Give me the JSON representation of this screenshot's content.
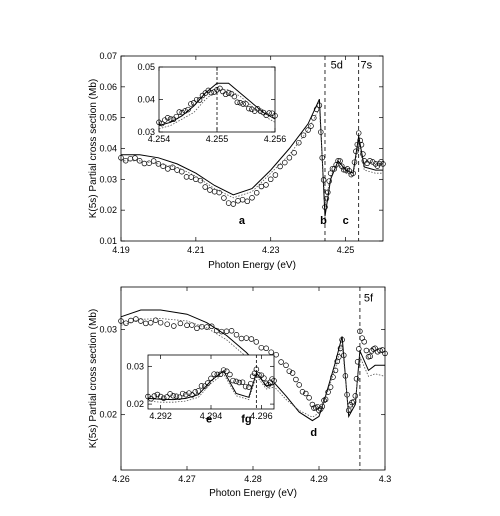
{
  "chart_data": [
    {
      "type": "scatter",
      "panel": "top",
      "xlabel": "Photon Energy (eV)",
      "ylabel": "K(5s) Partial cross section (Mb)",
      "xlim": [
        4.19,
        4.26
      ],
      "ylim": [
        0.01,
        0.07
      ],
      "xticks": [
        4.19,
        4.21,
        4.23,
        4.25
      ],
      "yticks": [
        0.01,
        0.02,
        0.03,
        0.04,
        0.05,
        0.06,
        0.07
      ],
      "xtick_labels": [
        "4.19",
        "4.21",
        "4.23",
        "4.25"
      ],
      "ytick_labels": [
        "0.01",
        "0.02",
        "0.03",
        "0.04",
        "0.05",
        "0.06",
        "0.07"
      ],
      "grid": false,
      "vlines": [
        4.2445,
        4.2535
      ],
      "annotations": [
        {
          "text": "5d",
          "x": 4.246,
          "y": 0.066,
          "bold": false
        },
        {
          "text": "7s",
          "x": 4.254,
          "y": 0.066,
          "bold": false
        },
        {
          "text": "a",
          "x": 4.2215,
          "y": 0.0155,
          "bold": true
        },
        {
          "text": "b",
          "x": 4.2432,
          "y": 0.0155,
          "bold": true
        },
        {
          "text": "c",
          "x": 4.2492,
          "y": 0.0155,
          "bold": true
        }
      ],
      "series": [
        {
          "style": "markers",
          "x": [
            4.19,
            4.195,
            4.2,
            4.205,
            4.21,
            4.215,
            4.22,
            4.225,
            4.23,
            4.235,
            4.24,
            4.243,
            4.2445,
            4.246,
            4.248,
            4.25,
            4.252,
            4.2535,
            4.255,
            4.258,
            4.26
          ],
          "y": [
            0.037,
            0.036,
            0.035,
            0.033,
            0.03,
            0.026,
            0.022,
            0.024,
            0.03,
            0.037,
            0.046,
            0.054,
            0.021,
            0.032,
            0.036,
            0.033,
            0.032,
            0.045,
            0.036,
            0.035,
            0.035
          ]
        },
        {
          "style": "line",
          "x": [
            4.19,
            4.195,
            4.2,
            4.205,
            4.21,
            4.215,
            4.22,
            4.225,
            4.23,
            4.235,
            4.24,
            4.243,
            4.2445,
            4.246,
            4.248,
            4.25,
            4.252,
            4.2535,
            4.255,
            4.258,
            4.26
          ],
          "y": [
            0.038,
            0.038,
            0.037,
            0.035,
            0.032,
            0.028,
            0.025,
            0.027,
            0.033,
            0.04,
            0.048,
            0.056,
            0.018,
            0.03,
            0.036,
            0.033,
            0.032,
            0.044,
            0.034,
            0.033,
            0.033
          ]
        },
        {
          "style": "line",
          "x": [
            4.19,
            4.195,
            4.2,
            4.205,
            4.21,
            4.215,
            4.22,
            4.225,
            4.23,
            4.235,
            4.24,
            4.243,
            4.2445,
            4.246,
            4.248,
            4.25,
            4.252,
            4.2535,
            4.255,
            4.258,
            4.26
          ],
          "y": [
            0.036,
            0.036,
            0.035,
            0.034,
            0.031,
            0.027,
            0.024,
            0.026,
            0.032,
            0.038,
            0.046,
            0.053,
            0.022,
            0.031,
            0.035,
            0.032,
            0.031,
            0.042,
            0.033,
            0.032,
            0.032
          ]
        }
      ],
      "inset": {
        "xlim": [
          4.254,
          4.256
        ],
        "ylim": [
          0.03,
          0.05
        ],
        "xticks": [
          4.254,
          4.255,
          4.256
        ],
        "yticks": [
          0.03,
          0.04,
          0.05
        ],
        "xtick_labels": [
          "4.254",
          "4.255",
          "4.256"
        ],
        "ytick_labels": [
          "0.03",
          "0.04",
          "0.05"
        ],
        "vline": 4.255,
        "series": [
          {
            "style": "markers",
            "x": [
              4.254,
              4.2542,
              4.2544,
              4.2546,
              4.2548,
              4.255,
              4.2552,
              4.2554,
              4.2556,
              4.2558,
              4.256
            ],
            "y": [
              0.033,
              0.034,
              0.036,
              0.039,
              0.042,
              0.043,
              0.042,
              0.039,
              0.037,
              0.036,
              0.035
            ]
          },
          {
            "style": "line",
            "x": [
              4.254,
              4.2542,
              4.2544,
              4.2546,
              4.2548,
              4.255,
              4.2552,
              4.2554,
              4.2556,
              4.2558,
              4.256
            ],
            "y": [
              0.032,
              0.033,
              0.035,
              0.038,
              0.042,
              0.045,
              0.045,
              0.042,
              0.039,
              0.036,
              0.034
            ]
          },
          {
            "style": "line",
            "x": [
              4.254,
              4.2542,
              4.2544,
              4.2546,
              4.2548,
              4.255,
              4.2552,
              4.2554,
              4.2556,
              4.2558,
              4.256
            ],
            "y": [
              0.031,
              0.032,
              0.034,
              0.036,
              0.04,
              0.043,
              0.043,
              0.041,
              0.038,
              0.035,
              0.033
            ]
          }
        ]
      }
    },
    {
      "type": "scatter",
      "panel": "bottom",
      "xlabel": "Photon Energy (eV)",
      "ylabel": "K(5s) Partial cross section (Mb)",
      "xlim": [
        4.26,
        4.3
      ],
      "ylim": [
        0.0135,
        0.035
      ],
      "xticks": [
        4.26,
        4.27,
        4.28,
        4.29,
        4.3
      ],
      "yticks": [
        0.02,
        0.03
      ],
      "xtick_labels": [
        "4.26",
        "4.27",
        "4.28",
        "4.29",
        "4.3"
      ],
      "ytick_labels": [
        "0.02",
        "0.03"
      ],
      "grid": false,
      "vlines": [
        4.2962
      ],
      "annotations": [
        {
          "text": "5f",
          "x": 4.2968,
          "y": 0.0333,
          "bold": false
        },
        {
          "text": "d",
          "x": 4.2887,
          "y": 0.0175,
          "bold": true
        }
      ],
      "series": [
        {
          "style": "markers",
          "x": [
            4.26,
            4.263,
            4.266,
            4.27,
            4.273,
            4.276,
            4.279,
            4.282,
            4.285,
            4.287,
            4.289,
            4.29,
            4.291,
            4.2925,
            4.2935,
            4.2945,
            4.2955,
            4.2962,
            4.2975,
            4.2985,
            4.3
          ],
          "y": [
            0.031,
            0.031,
            0.0308,
            0.0305,
            0.0303,
            0.0298,
            0.029,
            0.0278,
            0.0258,
            0.0235,
            0.0212,
            0.0205,
            0.0218,
            0.0252,
            0.0288,
            0.0205,
            0.0222,
            0.0298,
            0.0268,
            0.0278,
            0.0272
          ]
        },
        {
          "style": "line",
          "x": [
            4.26,
            4.263,
            4.266,
            4.27,
            4.273,
            4.276,
            4.279,
            4.282,
            4.285,
            4.287,
            4.289,
            4.29,
            4.291,
            4.2925,
            4.2935,
            4.2945,
            4.2955,
            4.2962,
            4.2975,
            4.2985,
            4.3
          ],
          "y": [
            0.0315,
            0.0323,
            0.0323,
            0.0318,
            0.0308,
            0.0293,
            0.0273,
            0.0248,
            0.0222,
            0.0203,
            0.0193,
            0.0198,
            0.0222,
            0.0262,
            0.0292,
            0.0198,
            0.0212,
            0.0275,
            0.0252,
            0.0258,
            0.0258
          ]
        },
        {
          "style": "line",
          "x": [
            4.26,
            4.263,
            4.266,
            4.27,
            4.273,
            4.276,
            4.279,
            4.282,
            4.285,
            4.287,
            4.289,
            4.29,
            4.291,
            4.2925,
            4.2935,
            4.2945,
            4.2955,
            4.2962,
            4.2975,
            4.2985,
            4.3
          ],
          "y": [
            0.0305,
            0.0312,
            0.0313,
            0.031,
            0.0302,
            0.0288,
            0.0268,
            0.0243,
            0.0218,
            0.0205,
            0.0197,
            0.0202,
            0.022,
            0.0255,
            0.0283,
            0.0202,
            0.0215,
            0.0268,
            0.0245,
            0.0248,
            0.0245
          ]
        }
      ],
      "inset": {
        "xlim": [
          4.2915,
          4.2965
        ],
        "ylim": [
          0.0187,
          0.033
        ],
        "xticks": [
          4.292,
          4.294,
          4.296
        ],
        "yticks": [
          0.02,
          0.03
        ],
        "xtick_labels": [
          "4.292",
          "4.294",
          "4.296"
        ],
        "ytick_labels": [
          "0.02",
          "0.03"
        ],
        "vline": 4.2958,
        "annotations": [
          {
            "text": "e",
            "x": 4.2938,
            "y": 0.0199
          },
          {
            "text": "fg",
            "x": 4.2952,
            "y": 0.0199
          }
        ],
        "series": [
          {
            "style": "markers",
            "x": [
              4.2915,
              4.292,
              4.2925,
              4.293,
              4.2935,
              4.294,
              4.2945,
              4.295,
              4.2955,
              4.2958,
              4.2962,
              4.2965
            ],
            "y": [
              0.022,
              0.022,
              0.0222,
              0.0225,
              0.0235,
              0.0268,
              0.029,
              0.026,
              0.0245,
              0.0292,
              0.0255,
              0.0262
            ]
          },
          {
            "style": "line",
            "x": [
              4.2915,
              4.292,
              4.2925,
              4.293,
              4.2935,
              4.294,
              4.2945,
              4.295,
              4.2955,
              4.2958,
              4.2962,
              4.2965
            ],
            "y": [
              0.0215,
              0.0213,
              0.0212,
              0.0215,
              0.0225,
              0.0262,
              0.0288,
              0.0228,
              0.0218,
              0.0282,
              0.0248,
              0.0252
            ]
          },
          {
            "style": "line",
            "x": [
              4.2915,
              4.292,
              4.2925,
              4.293,
              4.2935,
              4.294,
              4.2945,
              4.295,
              4.2955,
              4.2958,
              4.2962,
              4.2965
            ],
            "y": [
              0.0208,
              0.0205,
              0.0205,
              0.0208,
              0.0218,
              0.0255,
              0.028,
              0.0222,
              0.0212,
              0.0275,
              0.024,
              0.0245
            ]
          }
        ]
      }
    }
  ]
}
